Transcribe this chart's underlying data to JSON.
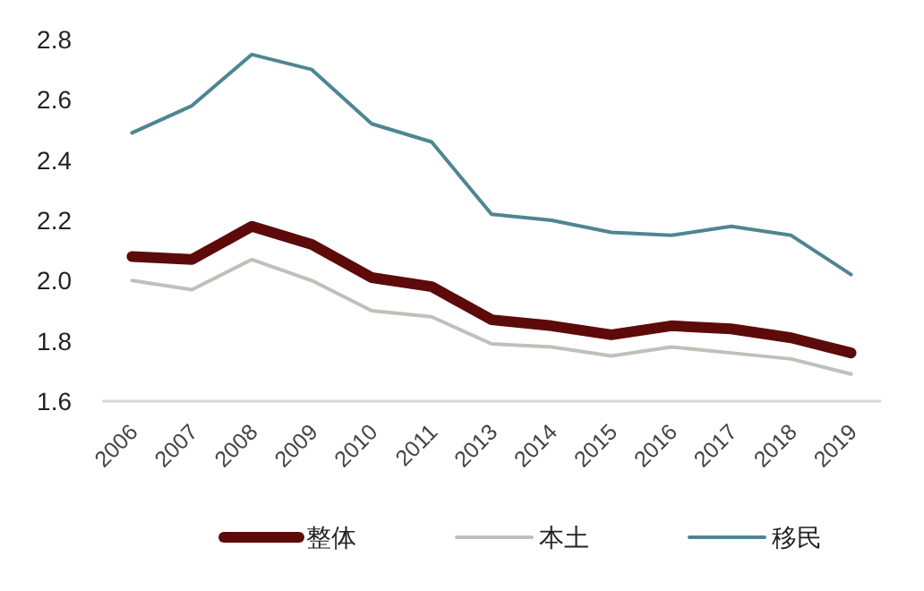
{
  "chart_data": {
    "type": "line",
    "categories": [
      "2006",
      "2007",
      "2008",
      "2009",
      "2010",
      "2011",
      "2013",
      "2014",
      "2015",
      "2016",
      "2017",
      "2018",
      "2019"
    ],
    "series": [
      {
        "name": "整体",
        "color": "#5c0a0a",
        "values": [
          2.08,
          2.07,
          2.18,
          2.12,
          2.01,
          1.98,
          1.87,
          1.85,
          1.82,
          1.85,
          1.84,
          1.81,
          1.76
        ]
      },
      {
        "name": "本土",
        "color": "#c0bfb8",
        "values": [
          2.0,
          1.97,
          2.07,
          2.0,
          1.9,
          1.88,
          1.79,
          1.78,
          1.75,
          1.78,
          1.76,
          1.74,
          1.69
        ]
      },
      {
        "name": "移民",
        "color": "#4e8690",
        "values": [
          2.49,
          2.58,
          2.75,
          2.7,
          2.52,
          2.46,
          2.22,
          2.2,
          2.16,
          2.15,
          2.18,
          2.15,
          2.02
        ]
      }
    ],
    "ylim": [
      1.6,
      2.8
    ],
    "yticks": [
      1.6,
      1.8,
      {
        "value": 2,
        "label": "2.0"
      },
      2.2,
      2.4,
      2.6,
      2.8
    ],
    "grid": false,
    "legend": "bottom",
    "marker": "none",
    "line_style": "solid"
  }
}
